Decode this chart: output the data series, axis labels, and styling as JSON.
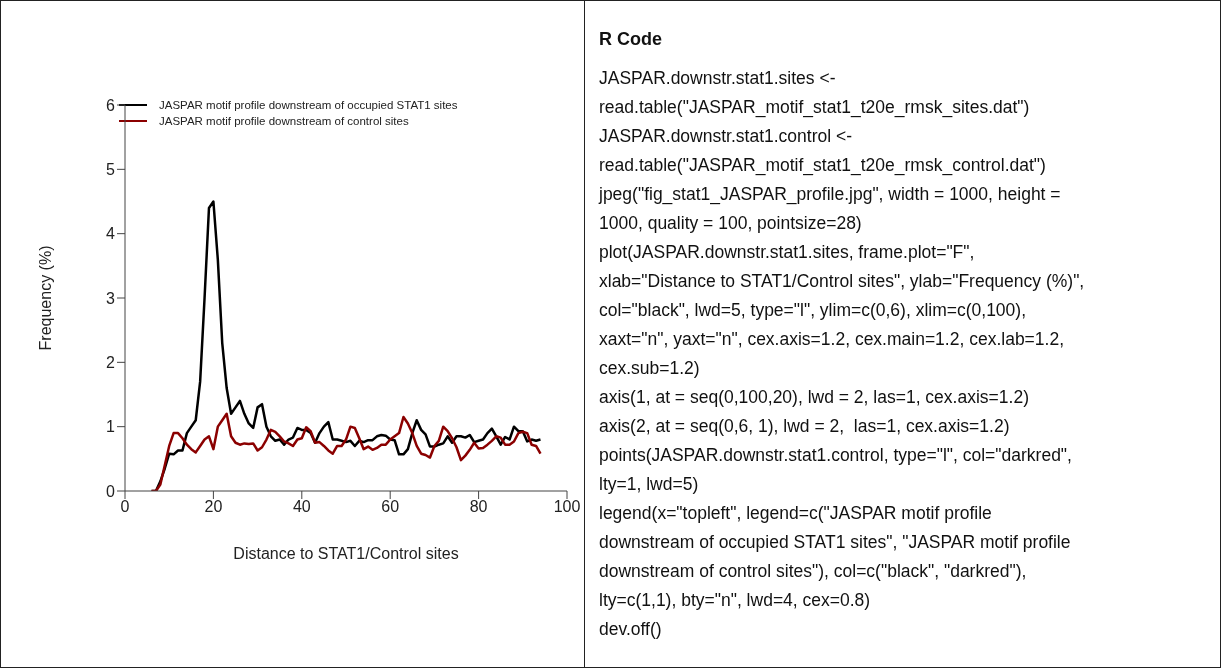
{
  "chart_data": [
    {
      "type": "line",
      "xlabel": "Distance to STAT1/Control sites",
      "ylabel": "Frequency (%)",
      "x": [
        6,
        7,
        8,
        9,
        10,
        11,
        12,
        13,
        14,
        15,
        16,
        17,
        18,
        19,
        20,
        21,
        22,
        23,
        24,
        25,
        26,
        27,
        28,
        29,
        30,
        31,
        32,
        33,
        34,
        35,
        36,
        37,
        38,
        39,
        40,
        41,
        42,
        43,
        44,
        45,
        46,
        47,
        48,
        49,
        50,
        51,
        52,
        53,
        54,
        55,
        56,
        57,
        58,
        59,
        60,
        61,
        62,
        63,
        64,
        65,
        66,
        67,
        68,
        69,
        70,
        71,
        72,
        73,
        74,
        75,
        76,
        77,
        78,
        79,
        80,
        81,
        82,
        83,
        84,
        85,
        86,
        87,
        88,
        89,
        90,
        91,
        92,
        93,
        94
      ],
      "series": [
        {
          "name": "JASPAR motif profile downstream of occupied STAT1 sites",
          "color": "#000000",
          "values": [
            0,
            0,
            0.15,
            0.35,
            0.58,
            0.57,
            0.63,
            0.63,
            0.9,
            1.0,
            1.1,
            1.7,
            3.0,
            4.4,
            4.5,
            3.6,
            2.3,
            1.6,
            1.2,
            1.3,
            1.4,
            1.2,
            1.05,
            0.98,
            1.3,
            1.35,
            1.0,
            0.85,
            0.78,
            0.8,
            0.72,
            0.8,
            0.83,
            0.98,
            0.95,
            0.95,
            0.9,
            0.75,
            0.9,
            1.0,
            1.07,
            0.8,
            0.8,
            0.78,
            0.76,
            0.78,
            0.7,
            0.78,
            0.76,
            0.79,
            0.79,
            0.85,
            0.87,
            0.86,
            0.8,
            0.79,
            0.57,
            0.57,
            0.65,
            0.9,
            1.1,
            0.95,
            0.88,
            0.69,
            0.69,
            0.72,
            0.74,
            0.85,
            0.75,
            0.85,
            0.85,
            0.83,
            0.87,
            0.76,
            0.78,
            0.8,
            0.9,
            0.97,
            0.85,
            0.72,
            0.84,
            0.8,
            1.0,
            0.93,
            0.93,
            0.77,
            0.8,
            0.78,
            0.8
          ]
        },
        {
          "name": "JASPAR motif profile downstream of control sites",
          "color": "#8b0000",
          "values": [
            0,
            0,
            0.1,
            0.4,
            0.7,
            0.9,
            0.9,
            0.82,
            0.72,
            0.65,
            0.6,
            0.7,
            0.8,
            0.85,
            0.65,
            1.0,
            1.1,
            1.2,
            0.85,
            0.75,
            0.72,
            0.74,
            0.73,
            0.74,
            0.63,
            0.68,
            0.8,
            0.95,
            0.92,
            0.85,
            0.77,
            0.74,
            0.7,
            0.8,
            0.82,
            0.99,
            0.93,
            0.75,
            0.76,
            0.7,
            0.63,
            0.58,
            0.7,
            0.7,
            0.8,
            1.0,
            0.98,
            0.82,
            0.65,
            0.69,
            0.64,
            0.67,
            0.72,
            0.72,
            0.8,
            0.85,
            0.9,
            1.15,
            1.05,
            0.9,
            0.7,
            0.58,
            0.56,
            0.52,
            0.7,
            0.78,
            1.0,
            0.93,
            0.82,
            0.68,
            0.48,
            0.55,
            0.64,
            0.75,
            0.66,
            0.67,
            0.72,
            0.78,
            0.85,
            0.83,
            0.72,
            0.72,
            0.77,
            0.9,
            0.92,
            0.9,
            0.72,
            0.7,
            0.58
          ]
        }
      ],
      "xlim": [
        0,
        100
      ],
      "xticks": [
        0,
        20,
        40,
        60,
        80,
        100
      ],
      "ylim": [
        0,
        6
      ],
      "yticks": [
        0,
        1,
        2,
        3,
        4,
        5,
        6
      ],
      "grid": false,
      "legend": "top left",
      "marker": "none",
      "line_style": "solid"
    },
    {
      "type": "other",
      "title": "R Code",
      "annotations": [
        "JASPAR.downstr.stat1.sites <-",
        "read.table(\"JASPAR_motif_stat1_t20e_rmsk_sites.dat\")",
        "JASPAR.downstr.stat1.control <-",
        "read.table(\"JASPAR_motif_stat1_t20e_rmsk_control.dat\")",
        "jpeg(\"fig_stat1_JASPAR_profile.jpg\", width = 1000, height =",
        "1000, quality = 100, pointsize=28)",
        "plot(JASPAR.downstr.stat1.sites, frame.plot=\"F\",",
        "xlab=\"Distance to STAT1/Control sites\", ylab=\"Frequency (%)\",",
        "col=\"black\", lwd=5, type=\"l\", ylim=c(0,6), xlim=c(0,100),",
        "xaxt=\"n\", yaxt=\"n\", cex.axis=1.2, cex.main=1.2, cex.lab=1.2,",
        "cex.sub=1.2)",
        "axis(1, at = seq(0,100,20), lwd = 2, las=1, cex.axis=1.2)",
        "axis(2, at = seq(0,6, 1), lwd = 2,  las=1, cex.axis=1.2)",
        "points(JASPAR.downstr.stat1.control, type=\"l\", col=\"darkred\",",
        "lty=1, lwd=5)",
        "legend(x=\"topleft\", legend=c(\"JASPAR motif profile",
        "downstream of occupied STAT1 sites\", \"JASPAR motif profile",
        "downstream of control sites\"), col=c(\"black\", \"darkred\"),",
        "lty=c(1,1), bty=\"n\", lwd=4, cex=0.8)",
        "dev.off()"
      ]
    }
  ]
}
